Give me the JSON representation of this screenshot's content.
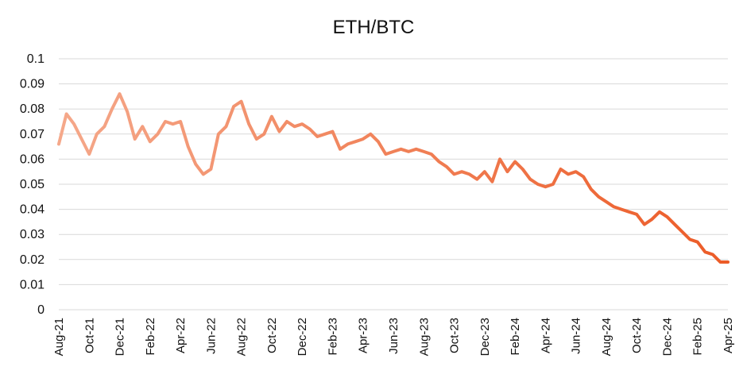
{
  "chart_data": {
    "type": "line",
    "title": "ETH/BTC",
    "xlabel": "",
    "ylabel": "",
    "ylim": [
      0,
      0.1
    ],
    "y_ticks": [
      "0",
      "0.01",
      "0.02",
      "0.03",
      "0.04",
      "0.05",
      "0.06",
      "0.07",
      "0.08",
      "0.09",
      "0.1"
    ],
    "x_tick_labels": [
      "Aug-21",
      "Oct-21",
      "Dec-21",
      "Feb-22",
      "Apr-22",
      "Jun-22",
      "Aug-22",
      "Oct-22",
      "Dec-22",
      "Feb-23",
      "Apr-23",
      "Jun-23",
      "Aug-23",
      "Oct-23",
      "Dec-23",
      "Feb-24",
      "Apr-24",
      "Jun-24",
      "Aug-24",
      "Oct-24",
      "Dec-24",
      "Feb-25",
      "Apr-25"
    ],
    "grid": true,
    "colors": {
      "start": "#f5a88a",
      "end": "#ec5b27",
      "grid": "#d9d9d9"
    },
    "series": [
      {
        "x": [
          "Aug-21",
          "Aug-21",
          "Sep-21",
          "Sep-21",
          "Oct-21",
          "Oct-21",
          "Nov-21",
          "Nov-21",
          "Dec-21",
          "Dec-21",
          "Jan-22",
          "Jan-22",
          "Feb-22",
          "Feb-22",
          "Mar-22",
          "Mar-22",
          "Apr-22",
          "Apr-22",
          "May-22",
          "May-22",
          "Jun-22",
          "Jun-22",
          "Jul-22",
          "Jul-22",
          "Aug-22",
          "Aug-22",
          "Sep-22",
          "Sep-22",
          "Oct-22",
          "Oct-22",
          "Nov-22",
          "Nov-22",
          "Dec-22",
          "Dec-22",
          "Jan-23",
          "Jan-23",
          "Feb-23",
          "Feb-23",
          "Mar-23",
          "Mar-23",
          "Apr-23",
          "Apr-23",
          "May-23",
          "May-23",
          "Jun-23",
          "Jun-23",
          "Jul-23",
          "Jul-23",
          "Aug-23",
          "Aug-23",
          "Sep-23",
          "Sep-23",
          "Oct-23",
          "Oct-23",
          "Nov-23",
          "Nov-23",
          "Dec-23",
          "Dec-23",
          "Jan-24",
          "Jan-24",
          "Feb-24",
          "Feb-24",
          "Mar-24",
          "Mar-24",
          "Apr-24",
          "Apr-24",
          "May-24",
          "May-24",
          "Jun-24",
          "Jun-24",
          "Jul-24",
          "Jul-24",
          "Aug-24",
          "Aug-24",
          "Sep-24",
          "Sep-24",
          "Oct-24",
          "Oct-24",
          "Nov-24",
          "Nov-24",
          "Dec-24",
          "Dec-24",
          "Jan-25",
          "Jan-25",
          "Feb-25",
          "Feb-25",
          "Mar-25",
          "Mar-25",
          "Apr-25"
        ],
        "values": [
          0.066,
          0.078,
          0.074,
          0.068,
          0.062,
          0.07,
          0.073,
          0.08,
          0.086,
          0.079,
          0.068,
          0.073,
          0.067,
          0.07,
          0.075,
          0.074,
          0.075,
          0.065,
          0.058,
          0.054,
          0.056,
          0.07,
          0.073,
          0.081,
          0.083,
          0.074,
          0.068,
          0.07,
          0.077,
          0.071,
          0.075,
          0.073,
          0.074,
          0.072,
          0.069,
          0.07,
          0.071,
          0.064,
          0.066,
          0.067,
          0.068,
          0.07,
          0.067,
          0.062,
          0.063,
          0.064,
          0.063,
          0.064,
          0.063,
          0.062,
          0.059,
          0.057,
          0.054,
          0.055,
          0.054,
          0.052,
          0.055,
          0.051,
          0.06,
          0.055,
          0.059,
          0.056,
          0.052,
          0.05,
          0.049,
          0.05,
          0.056,
          0.054,
          0.055,
          0.053,
          0.048,
          0.045,
          0.043,
          0.041,
          0.04,
          0.039,
          0.038,
          0.034,
          0.036,
          0.039,
          0.037,
          0.034,
          0.031,
          0.028,
          0.027,
          0.023,
          0.022,
          0.019,
          0.019
        ]
      }
    ]
  }
}
